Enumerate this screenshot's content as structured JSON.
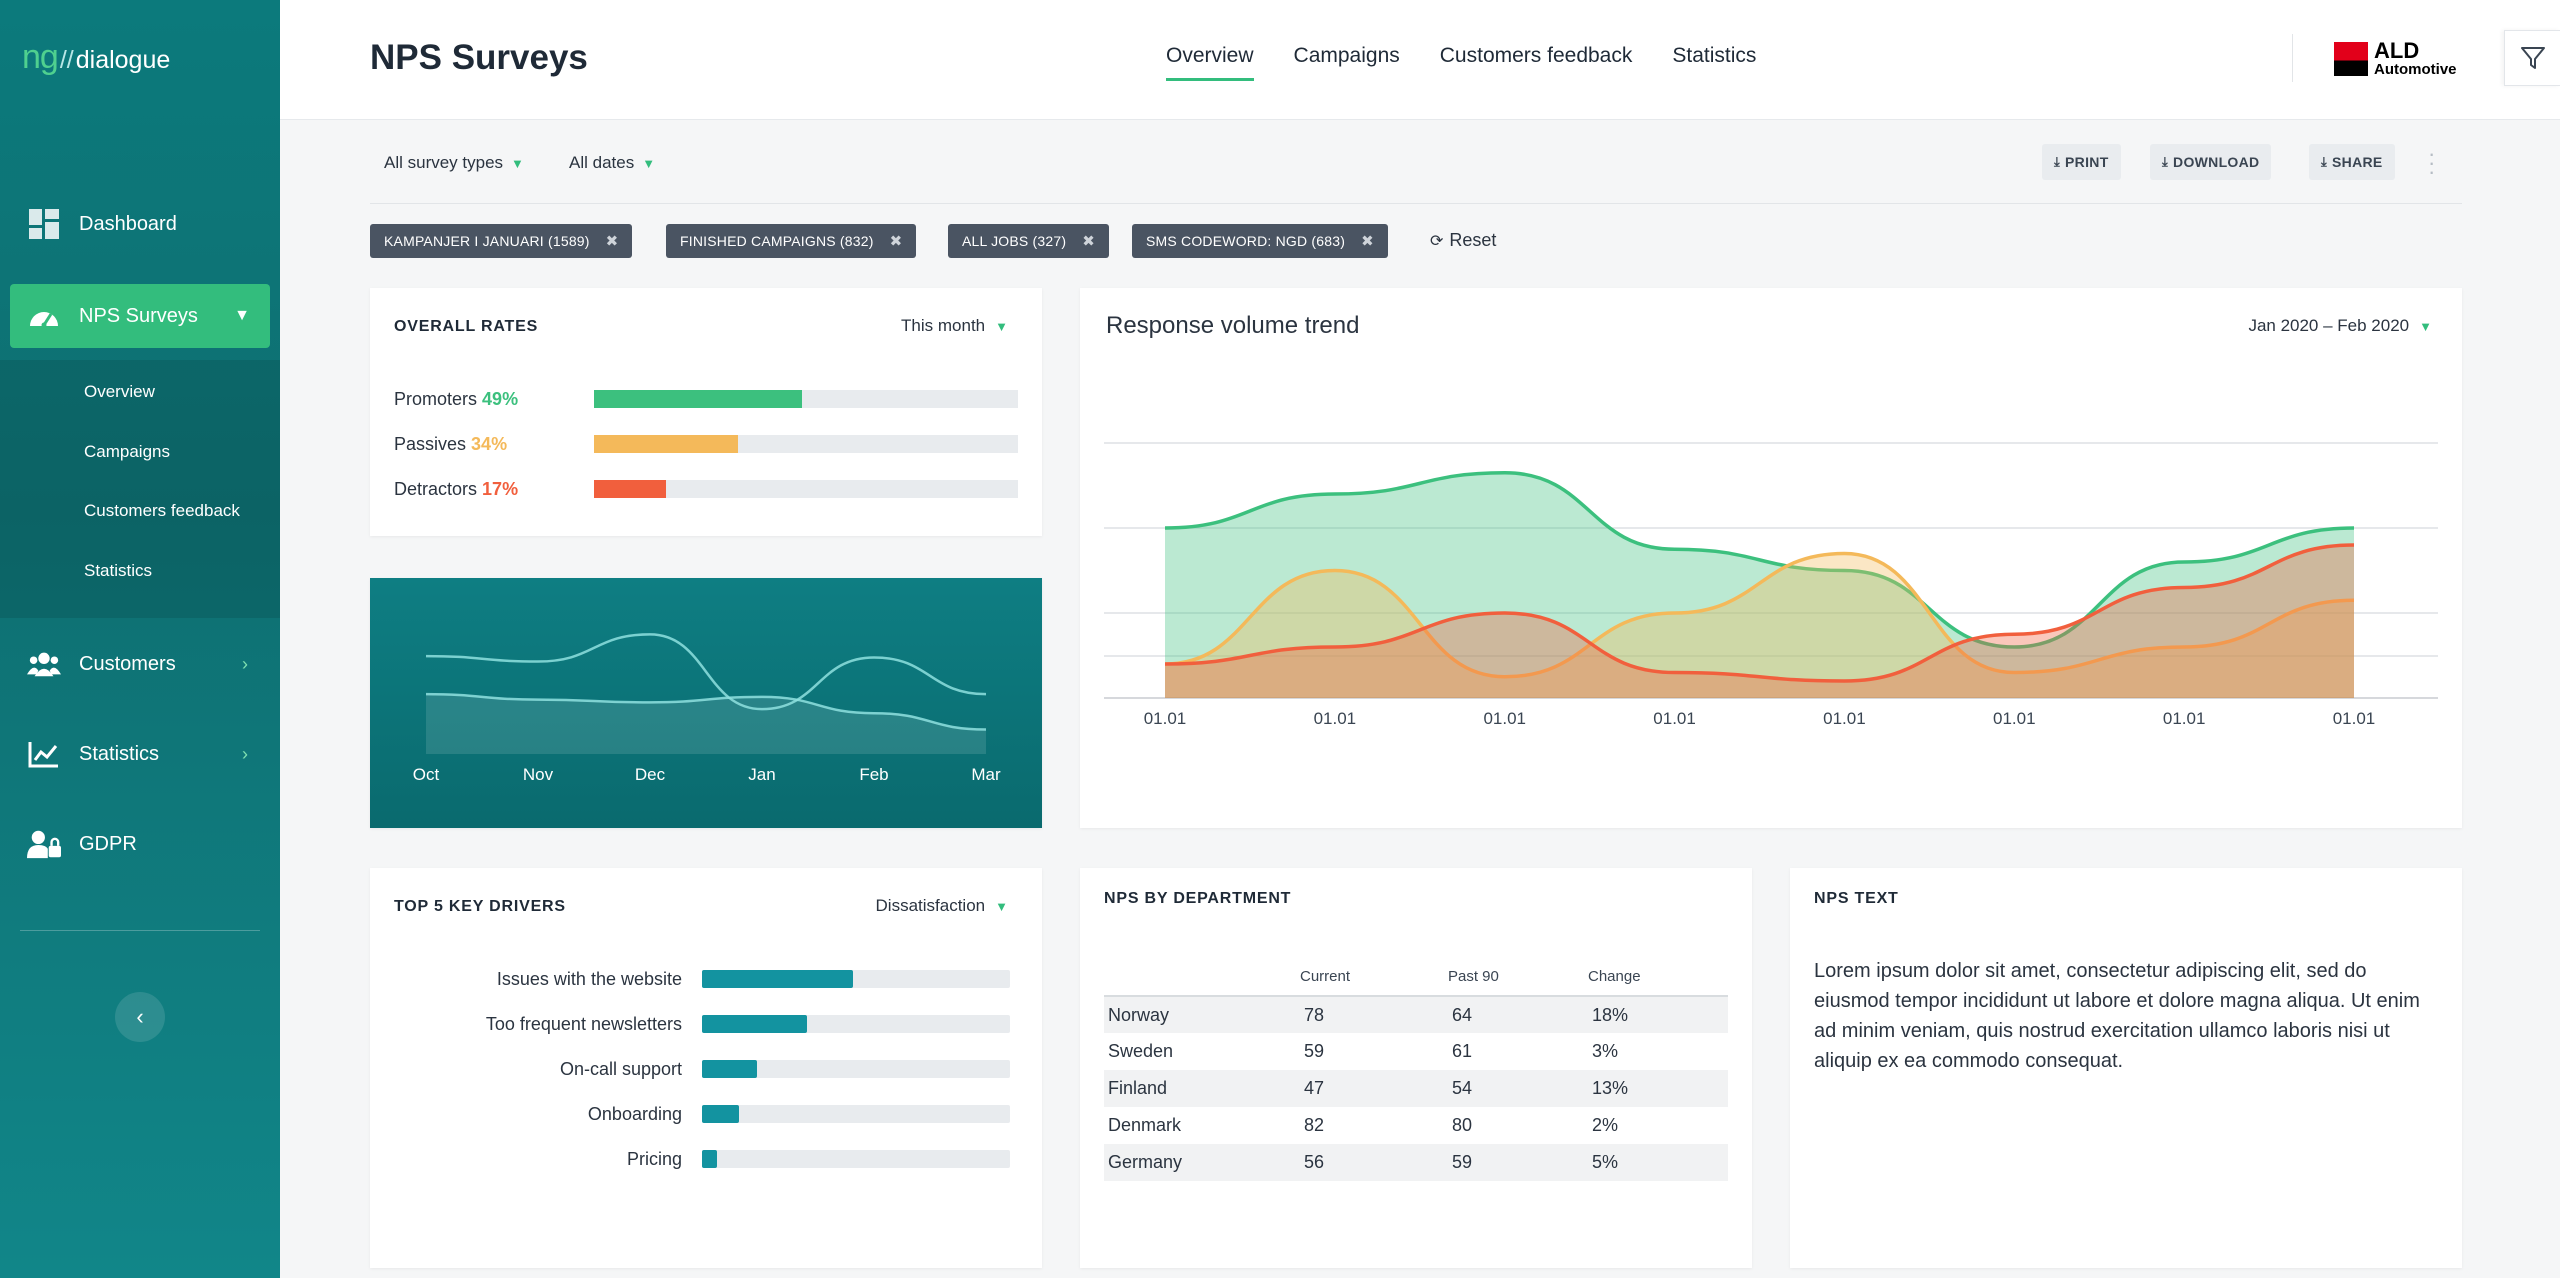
{
  "app": {
    "logo_ng": "ng",
    "logo_slash": "//",
    "logo_name": "dialogue"
  },
  "sidebar": {
    "items": [
      {
        "label": "Dashboard",
        "icon": "dashboard-icon"
      },
      {
        "label": "NPS Surveys",
        "icon": "gauge-icon",
        "active": true
      },
      {
        "label": "Customers",
        "icon": "users-icon"
      },
      {
        "label": "Statistics",
        "icon": "chart-line-icon"
      },
      {
        "label": "GDPR",
        "icon": "user-lock-icon"
      }
    ],
    "subitems": [
      "Overview",
      "Campaigns",
      "Customers feedback",
      "Statistics"
    ],
    "collapse_glyph": "‹"
  },
  "header": {
    "title": "NPS Surveys",
    "tabs": [
      "Overview",
      "Campaigns",
      "Customers feedback",
      "Statistics"
    ],
    "active_tab": "Overview",
    "brand_line1": "ALD",
    "brand_line2": "Automotive"
  },
  "filters": {
    "survey_types": "All survey types",
    "dates": "All dates",
    "actions": {
      "print": "PRINT",
      "download": "DOWNLOAD",
      "share": "SHARE"
    },
    "chips": [
      "KAMPANJER I JANUARI (1589)",
      "FINISHED CAMPAIGNS (832)",
      "ALL JOBS (327)",
      "SMS CODEWORD: NGD (683)"
    ],
    "reset": "Reset"
  },
  "overall_rates": {
    "title": "OVERALL RATES",
    "period": "This month",
    "rows": [
      {
        "label": "Promoters",
        "value": "49%",
        "fraction": 0.49,
        "color": "#3cc07e"
      },
      {
        "label": "Passives",
        "value": "34%",
        "fraction": 0.34,
        "color": "#f4b95a"
      },
      {
        "label": "Detractors",
        "value": "17%",
        "fraction": 0.17,
        "color": "#f15f3d"
      }
    ]
  },
  "mini_chart": {
    "months": [
      "Oct",
      "Nov",
      "Dec",
      "Jan",
      "Feb",
      "Mar"
    ]
  },
  "response_trend": {
    "title": "Response volume trend",
    "period": "Jan 2020 – Feb 2020"
  },
  "chart_data": [
    {
      "type": "area",
      "title": "Response volume trend",
      "x": [
        "01.01",
        "01.01",
        "01.01",
        "01.01",
        "01.01",
        "01.01",
        "01.01",
        "01.01"
      ],
      "ylim": [
        0,
        60
      ],
      "grid": true,
      "series": [
        {
          "values": [
            40,
            48,
            53,
            35,
            30,
            12,
            32,
            40
          ],
          "color": "#3cc07e"
        },
        {
          "values": [
            8,
            30,
            5,
            20,
            34,
            6,
            12,
            23
          ],
          "color": "#f4b95a"
        },
        {
          "values": [
            8,
            12,
            20,
            6,
            4,
            15,
            26,
            36
          ],
          "color": "#f15f3d"
        }
      ]
    },
    {
      "type": "line",
      "categories": [
        "Oct",
        "Nov",
        "Dec",
        "Jan",
        "Feb",
        "Mar"
      ],
      "ylim": [
        0,
        100
      ],
      "series": [
        {
          "values": [
            72,
            68,
            88,
            33,
            71,
            44
          ]
        },
        {
          "values": [
            44,
            40,
            38,
            42,
            30,
            18
          ]
        }
      ]
    }
  ],
  "key_drivers": {
    "title": "TOP 5 KEY DRIVERS",
    "mode": "Dissatisfaction",
    "items": [
      {
        "label": "Issues with the website",
        "fraction": 0.49
      },
      {
        "label": "Too frequent newsletters",
        "fraction": 0.34
      },
      {
        "label": "On-call support",
        "fraction": 0.18
      },
      {
        "label": "Onboarding",
        "fraction": 0.12
      },
      {
        "label": "Pricing",
        "fraction": 0.05
      }
    ]
  },
  "department": {
    "title": "NPS BY DEPARTMENT",
    "columns": [
      "",
      "Current",
      "Past 90",
      "Change"
    ],
    "rows": [
      [
        "Norway",
        "78",
        "64",
        "18%"
      ],
      [
        "Sweden",
        "59",
        "61",
        "3%"
      ],
      [
        "Finland",
        "47",
        "54",
        "13%"
      ],
      [
        "Denmark",
        "82",
        "80",
        "2%"
      ],
      [
        "Germany",
        "56",
        "59",
        "5%"
      ]
    ]
  },
  "nps_text": {
    "title": "NPS TEXT",
    "body": "Lorem ipsum dolor sit amet, consectetur adipiscing elit, sed do eiusmod tempor incididunt ut labore et dolore magna aliqua. Ut enim ad minim veniam, quis nostrud exercitation ullamco laboris nisi ut aliquip ex ea commodo consequat."
  }
}
